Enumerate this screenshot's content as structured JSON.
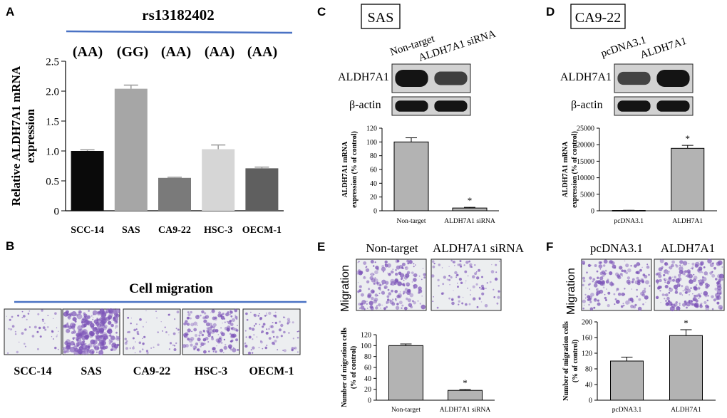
{
  "colors": {
    "rule_blue": "#4a72c4",
    "blot_band": "#141414",
    "blot_bg": "#d2d2d2",
    "bar_gray": "#b3b3b3",
    "stain_purple": "#7d55b8"
  },
  "panels": {
    "A": {
      "letter": "A",
      "snp_title": "rs13182402",
      "genotypes": [
        "(AA)",
        "(GG)",
        "(AA)",
        "(AA)",
        "(AA)"
      ]
    },
    "B": {
      "letter": "B",
      "title": "Cell migration",
      "images": [
        {
          "label": "SCC-14",
          "density": 0.12
        },
        {
          "label": "SAS",
          "density": 0.95
        },
        {
          "label": "CA9-22",
          "density": 0.15
        },
        {
          "label": "HSC-3",
          "density": 0.55
        },
        {
          "label": "OECM-1",
          "density": 0.25
        }
      ]
    },
    "C": {
      "letter": "C",
      "cell_line": "SAS",
      "lane_labels": [
        "Non-target",
        "ALDH7A1 siRNA"
      ],
      "blot_rows": [
        "ALDH7A1",
        "β-actin"
      ],
      "band_intensity": {
        "ALDH7A1": [
          1.0,
          0.6
        ],
        "β-actin": [
          1.0,
          1.0
        ]
      }
    },
    "D": {
      "letter": "D",
      "cell_line": "CA9-22",
      "lane_labels": [
        "pcDNA3.1",
        "ALDH7A1"
      ],
      "blot_rows": [
        "ALDH7A1",
        "β-actin"
      ],
      "band_intensity": {
        "ALDH7A1": [
          0.55,
          1.0
        ],
        "β-actin": [
          1.0,
          1.0
        ]
      }
    },
    "E": {
      "letter": "E",
      "image_labels": [
        "Non-target",
        "ALDH7A1 siRNA"
      ],
      "side_label": "Migration",
      "image_density": [
        0.65,
        0.3
      ]
    },
    "F": {
      "letter": "F",
      "image_labels": [
        "pcDNA3.1",
        "ALDH7A1"
      ],
      "side_label": "Migration",
      "image_density": [
        0.55,
        0.75
      ]
    }
  },
  "chart_data": [
    {
      "panel": "A",
      "type": "bar",
      "categories": [
        "SCC-14",
        "SAS",
        "CA9-22",
        "HSC-3",
        "OECM-1"
      ],
      "values": [
        1.0,
        2.04,
        0.55,
        1.03,
        0.71
      ],
      "errors": [
        0.02,
        0.06,
        0.01,
        0.07,
        0.02
      ],
      "colors": [
        "#0a0a0a",
        "#a6a6a6",
        "#7a7a7a",
        "#d6d6d6",
        "#5f5f5f"
      ],
      "ylabel": "Relative ALDH7A1 mRNA expression",
      "ylim": [
        0,
        2.5
      ],
      "yticks": [
        "0",
        "0.5",
        "1.0",
        "1.5",
        "2.0",
        "2.5"
      ]
    },
    {
      "panel": "C",
      "type": "bar",
      "categories": [
        "Non-target",
        "ALDH7A1 siRNA"
      ],
      "values": [
        100,
        4
      ],
      "errors": [
        6,
        1
      ],
      "significance": [
        "",
        "*"
      ],
      "ylabel": "ALDH7A1 mRNA expression (% of control)",
      "ylim": [
        0,
        120
      ],
      "yticks": [
        "0",
        "20",
        "40",
        "60",
        "80",
        "100",
        "120"
      ]
    },
    {
      "panel": "D",
      "type": "bar",
      "categories": [
        "pcDNA3.1",
        "ALDH7A1"
      ],
      "values": [
        100,
        18900
      ],
      "errors": [
        50,
        900
      ],
      "significance": [
        "",
        "*"
      ],
      "ylabel": "ALDH7A1 mRNA expression (% of control)",
      "ylim": [
        0,
        25000
      ],
      "yticks": [
        "0",
        "5000",
        "10000",
        "15000",
        "20000",
        "25000"
      ]
    },
    {
      "panel": "E",
      "type": "bar",
      "categories": [
        "Non-target",
        "ALDH7A1 siRNA"
      ],
      "values": [
        100,
        18
      ],
      "errors": [
        3,
        1.5
      ],
      "significance": [
        "",
        "*"
      ],
      "ylabel": "Number of migration cells (% of control)",
      "ylim": [
        0,
        120
      ],
      "yticks": [
        "0",
        "20",
        "40",
        "60",
        "80",
        "100",
        "120"
      ]
    },
    {
      "panel": "F",
      "type": "bar",
      "categories": [
        "pcDNA3.1",
        "ALDH7A1"
      ],
      "values": [
        100,
        165
      ],
      "errors": [
        10,
        15
      ],
      "significance": [
        "",
        "*"
      ],
      "ylabel": "Number of migration cells (% of control)",
      "ylim": [
        0,
        200
      ],
      "yticks": [
        "0",
        "40",
        "80",
        "120",
        "160",
        "200"
      ]
    }
  ]
}
